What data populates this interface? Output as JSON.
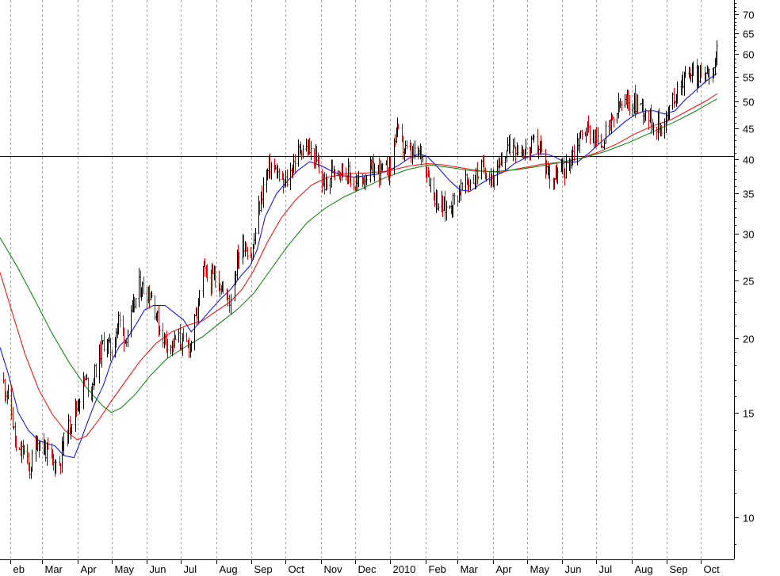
{
  "chart_data": {
    "type": "line",
    "title": "",
    "xlabel": "",
    "ylabel": "",
    "y_scale": "log",
    "ylim": [
      8.5,
      74
    ],
    "y_ticks": [
      10,
      15,
      20,
      25,
      30,
      35,
      40,
      45,
      50,
      55,
      60,
      65,
      70
    ],
    "x_tick_labels": [
      "eb",
      "Mar",
      "Apr",
      "May",
      "Jun",
      "Jul",
      "Aug",
      "Sep",
      "Oct",
      "Nov",
      "Dec",
      "2010",
      "Feb",
      "Mar",
      "Apr",
      "May",
      "Jun",
      "Jul",
      "Aug",
      "Sep",
      "Oct"
    ],
    "x_tick_dates": [
      "2009-02-01",
      "2009-03-01",
      "2009-04-01",
      "2009-05-01",
      "2009-06-01",
      "2009-07-01",
      "2009-08-01",
      "2009-09-01",
      "2009-10-01",
      "2009-11-01",
      "2009-12-01",
      "2010-01-01",
      "2010-02-01",
      "2010-03-01",
      "2010-04-01",
      "2010-05-01",
      "2010-06-01",
      "2010-07-01",
      "2010-08-01",
      "2010-09-01",
      "2010-10-01"
    ],
    "xlim": [
      "2009-01-23",
      "2010-10-30"
    ],
    "grid": "vertical dashed",
    "reference_line": {
      "y": 40.5,
      "color": "#0000a0"
    },
    "price_bars": {
      "up_color": "#000000",
      "down_color": "#e00000",
      "points": [
        [
          "2009-01-25",
          17
        ],
        [
          "2009-02-01",
          15.5
        ],
        [
          "2009-02-07",
          12.5
        ],
        [
          "2009-02-12",
          13
        ],
        [
          "2009-02-18",
          12
        ],
        [
          "2009-02-24",
          13.5
        ],
        [
          "2009-03-01",
          13.2
        ],
        [
          "2009-03-06",
          12.8
        ],
        [
          "2009-03-11",
          12.3
        ],
        [
          "2009-03-16",
          12.4
        ],
        [
          "2009-03-20",
          13.4
        ],
        [
          "2009-03-26",
          14.5
        ],
        [
          "2009-04-01",
          15.5
        ],
        [
          "2009-04-07",
          17
        ],
        [
          "2009-04-13",
          16.5
        ],
        [
          "2009-04-19",
          18.5
        ],
        [
          "2009-04-25",
          20
        ],
        [
          "2009-05-01",
          19
        ],
        [
          "2009-05-07",
          21.5
        ],
        [
          "2009-05-13",
          20
        ],
        [
          "2009-05-19",
          22
        ],
        [
          "2009-05-25",
          24.5
        ],
        [
          "2009-06-01",
          24
        ],
        [
          "2009-06-06",
          23.5
        ],
        [
          "2009-06-11",
          21
        ],
        [
          "2009-06-16",
          20
        ],
        [
          "2009-06-22",
          19.5
        ],
        [
          "2009-06-28",
          20
        ],
        [
          "2009-07-04",
          19.5
        ],
        [
          "2009-07-09",
          19.5
        ],
        [
          "2009-07-15",
          22
        ],
        [
          "2009-07-20",
          26
        ],
        [
          "2009-07-26",
          25
        ],
        [
          "2009-08-01",
          25.5
        ],
        [
          "2009-08-07",
          24
        ],
        [
          "2009-08-13",
          23
        ],
        [
          "2009-08-19",
          27
        ],
        [
          "2009-08-25",
          29
        ],
        [
          "2009-09-01",
          27.5
        ],
        [
          "2009-09-06",
          32
        ],
        [
          "2009-09-11",
          36
        ],
        [
          "2009-09-17",
          39
        ],
        [
          "2009-09-23",
          38
        ],
        [
          "2009-09-28",
          36
        ],
        [
          "2009-10-03",
          37
        ],
        [
          "2009-10-09",
          40
        ],
        [
          "2009-10-15",
          42
        ],
        [
          "2009-10-21",
          41.5
        ],
        [
          "2009-10-27",
          40
        ],
        [
          "2009-11-01",
          37
        ],
        [
          "2009-11-06",
          36
        ],
        [
          "2009-11-12",
          39
        ],
        [
          "2009-11-18",
          38.5
        ],
        [
          "2009-11-24",
          38
        ],
        [
          "2009-12-01",
          36
        ],
        [
          "2009-12-07",
          37
        ],
        [
          "2009-12-13",
          38
        ],
        [
          "2009-12-19",
          38.5
        ],
        [
          "2009-12-26",
          38
        ],
        [
          "2010-01-01",
          39
        ],
        [
          "2010-01-06",
          45
        ],
        [
          "2010-01-11",
          42
        ],
        [
          "2010-01-16",
          41
        ],
        [
          "2010-01-22",
          40.5
        ],
        [
          "2010-01-28",
          41
        ],
        [
          "2010-02-02",
          38.5
        ],
        [
          "2010-02-08",
          35
        ],
        [
          "2010-02-13",
          33.5
        ],
        [
          "2010-02-19",
          33
        ],
        [
          "2010-02-25",
          34
        ],
        [
          "2010-03-03",
          35.5
        ],
        [
          "2010-03-09",
          36.5
        ],
        [
          "2010-03-15",
          37
        ],
        [
          "2010-03-21",
          38.5
        ],
        [
          "2010-03-27",
          38.5
        ],
        [
          "2010-04-02",
          37
        ],
        [
          "2010-04-08",
          39
        ],
        [
          "2010-04-14",
          42
        ],
        [
          "2010-04-20",
          42.5
        ],
        [
          "2010-04-26",
          41.5
        ],
        [
          "2010-05-02",
          41
        ],
        [
          "2010-05-07",
          42.5
        ],
        [
          "2010-05-12",
          42
        ],
        [
          "2010-05-17",
          39
        ],
        [
          "2010-05-23",
          37
        ],
        [
          "2010-05-29",
          38
        ],
        [
          "2010-06-04",
          38.5
        ],
        [
          "2010-06-10",
          41
        ],
        [
          "2010-06-16",
          43.5
        ],
        [
          "2010-06-22",
          45
        ],
        [
          "2010-06-28",
          44
        ],
        [
          "2010-07-04",
          42
        ],
        [
          "2010-07-09",
          44
        ],
        [
          "2010-07-15",
          46
        ],
        [
          "2010-07-21",
          49
        ],
        [
          "2010-07-27",
          49.5
        ],
        [
          "2010-08-02",
          50
        ],
        [
          "2010-08-08",
          49.5
        ],
        [
          "2010-08-14",
          48
        ],
        [
          "2010-08-20",
          46
        ],
        [
          "2010-08-26",
          45.5
        ],
        [
          "2010-09-01",
          47
        ],
        [
          "2010-09-06",
          50
        ],
        [
          "2010-09-11",
          53
        ],
        [
          "2010-09-16",
          55
        ],
        [
          "2010-09-21",
          56
        ],
        [
          "2010-09-26",
          55
        ],
        [
          "2010-10-01",
          55.5
        ],
        [
          "2010-10-06",
          56.5
        ],
        [
          "2010-10-11",
          57
        ],
        [
          "2010-10-15",
          60
        ]
      ]
    },
    "series": [
      {
        "color": "#0000ff",
        "points": [
          [
            "2009-01-23",
            19.3
          ],
          [
            "2009-01-30",
            17.5
          ],
          [
            "2009-02-08",
            15
          ],
          [
            "2009-02-17",
            14
          ],
          [
            "2009-02-25",
            13.5
          ],
          [
            "2009-03-05",
            13.3
          ],
          [
            "2009-03-12",
            13.2
          ],
          [
            "2009-03-20",
            12.7
          ],
          [
            "2009-03-29",
            12.6
          ],
          [
            "2009-04-03",
            13.3
          ],
          [
            "2009-04-09",
            14.3
          ],
          [
            "2009-04-16",
            15.5
          ],
          [
            "2009-04-24",
            16.7
          ],
          [
            "2009-05-01",
            18.3
          ],
          [
            "2009-05-08",
            19.4
          ],
          [
            "2009-05-15",
            20
          ],
          [
            "2009-05-22",
            21
          ],
          [
            "2009-05-30",
            22.3
          ],
          [
            "2009-06-07",
            22.7
          ],
          [
            "2009-06-17",
            22.7
          ],
          [
            "2009-06-26",
            22
          ],
          [
            "2009-07-03",
            21.5
          ],
          [
            "2009-07-10",
            20.5
          ],
          [
            "2009-07-18",
            21.3
          ],
          [
            "2009-07-27",
            22.3
          ],
          [
            "2009-08-05",
            23.3
          ],
          [
            "2009-08-14",
            24.2
          ],
          [
            "2009-08-23",
            25.5
          ],
          [
            "2009-08-31",
            26.5
          ],
          [
            "2009-09-06",
            28.2
          ],
          [
            "2009-09-13",
            32
          ],
          [
            "2009-09-23",
            35
          ],
          [
            "2009-10-03",
            36.8
          ],
          [
            "2009-10-12",
            38.3
          ],
          [
            "2009-10-22",
            39.6
          ],
          [
            "2009-11-01",
            39
          ],
          [
            "2009-11-10",
            38.2
          ],
          [
            "2009-11-20",
            37.5
          ],
          [
            "2009-11-30",
            37.3
          ],
          [
            "2009-12-10",
            37.5
          ],
          [
            "2009-12-20",
            37.7
          ],
          [
            "2009-12-30",
            38.2
          ],
          [
            "2010-01-08",
            39
          ],
          [
            "2010-01-18",
            40.2
          ],
          [
            "2010-01-27",
            40.8
          ],
          [
            "2010-02-03",
            40.3
          ],
          [
            "2010-02-12",
            38.7
          ],
          [
            "2010-02-22",
            36.8
          ],
          [
            "2010-03-03",
            35.5
          ],
          [
            "2010-03-12",
            35.3
          ],
          [
            "2010-03-21",
            36.3
          ],
          [
            "2010-03-31",
            37.3
          ],
          [
            "2010-04-10",
            38
          ],
          [
            "2010-04-20",
            39.3
          ],
          [
            "2010-04-30",
            40.2
          ],
          [
            "2010-05-10",
            40.8
          ],
          [
            "2010-05-18",
            40.8
          ],
          [
            "2010-05-26",
            40.3
          ],
          [
            "2010-06-04",
            39.4
          ],
          [
            "2010-06-15",
            39.6
          ],
          [
            "2010-06-25",
            41
          ],
          [
            "2010-07-05",
            42.7
          ],
          [
            "2010-07-15",
            44.3
          ],
          [
            "2010-07-26",
            46.2
          ],
          [
            "2010-08-05",
            47.6
          ],
          [
            "2010-08-13",
            48.2
          ],
          [
            "2010-08-21",
            48.2
          ],
          [
            "2010-08-30",
            47.6
          ],
          [
            "2010-09-08",
            48.2
          ],
          [
            "2010-09-17",
            50.3
          ],
          [
            "2010-09-27",
            52.3
          ],
          [
            "2010-10-05",
            54
          ],
          [
            "2010-10-15",
            55.7
          ]
        ]
      },
      {
        "color": "#ff0000",
        "points": [
          [
            "2009-01-23",
            25.8
          ],
          [
            "2009-02-03",
            22
          ],
          [
            "2009-02-14",
            18.8
          ],
          [
            "2009-02-26",
            16.4
          ],
          [
            "2009-03-10",
            14.9
          ],
          [
            "2009-03-21",
            14
          ],
          [
            "2009-04-01",
            13.5
          ],
          [
            "2009-04-09",
            13.7
          ],
          [
            "2009-04-20",
            14.6
          ],
          [
            "2009-05-01",
            15.7
          ],
          [
            "2009-05-13",
            16.9
          ],
          [
            "2009-05-26",
            18.3
          ],
          [
            "2009-06-09",
            19.6
          ],
          [
            "2009-06-23",
            20.5
          ],
          [
            "2009-07-06",
            21
          ],
          [
            "2009-07-20",
            21.4
          ],
          [
            "2009-08-01",
            22.2
          ],
          [
            "2009-08-13",
            23
          ],
          [
            "2009-08-24",
            24.2
          ],
          [
            "2009-09-03",
            26
          ],
          [
            "2009-09-15",
            29
          ],
          [
            "2009-09-27",
            31.8
          ],
          [
            "2009-10-10",
            34.2
          ],
          [
            "2009-10-24",
            36.2
          ],
          [
            "2009-11-07",
            37.3
          ],
          [
            "2009-11-24",
            37.8
          ],
          [
            "2009-12-12",
            37.9
          ],
          [
            "2009-12-30",
            38.2
          ],
          [
            "2010-01-17",
            38.9
          ],
          [
            "2010-02-02",
            39.3
          ],
          [
            "2010-02-17",
            39.1
          ],
          [
            "2010-03-03",
            38.7
          ],
          [
            "2010-03-21",
            38.2
          ],
          [
            "2010-04-08",
            38
          ],
          [
            "2010-04-26",
            38.6
          ],
          [
            "2010-05-14",
            39.2
          ],
          [
            "2010-06-01",
            39.5
          ],
          [
            "2010-06-17",
            40.1
          ],
          [
            "2010-07-03",
            41.1
          ],
          [
            "2010-07-19",
            42.4
          ],
          [
            "2010-08-04",
            44.1
          ],
          [
            "2010-08-20",
            45.5
          ],
          [
            "2010-09-05",
            46.6
          ],
          [
            "2010-09-21",
            48.4
          ],
          [
            "2010-10-07",
            50.3
          ],
          [
            "2010-10-15",
            51.5
          ]
        ]
      },
      {
        "color": "#008000",
        "points": [
          [
            "2009-01-23",
            29.5
          ],
          [
            "2009-02-07",
            26.4
          ],
          [
            "2009-02-22",
            23.3
          ],
          [
            "2009-03-09",
            20.5
          ],
          [
            "2009-03-24",
            18.3
          ],
          [
            "2009-04-08",
            16.6
          ],
          [
            "2009-04-23",
            15.4
          ],
          [
            "2009-05-01",
            15
          ],
          [
            "2009-05-10",
            15.3
          ],
          [
            "2009-05-22",
            16.1
          ],
          [
            "2009-06-04",
            17.3
          ],
          [
            "2009-06-19",
            18.5
          ],
          [
            "2009-07-04",
            19.3
          ],
          [
            "2009-07-20",
            20.1
          ],
          [
            "2009-08-04",
            21.2
          ],
          [
            "2009-08-19",
            22.3
          ],
          [
            "2009-09-03",
            23.8
          ],
          [
            "2009-09-18",
            26.1
          ],
          [
            "2009-10-03",
            28.6
          ],
          [
            "2009-10-20",
            31.3
          ],
          [
            "2009-11-05",
            33.1
          ],
          [
            "2009-11-22",
            34.6
          ],
          [
            "2009-12-09",
            35.8
          ],
          [
            "2009-12-27",
            37.2
          ],
          [
            "2010-01-16",
            38.4
          ],
          [
            "2010-02-04",
            39.1
          ],
          [
            "2010-02-23",
            38.7
          ],
          [
            "2010-03-14",
            38.2
          ],
          [
            "2010-04-03",
            38.1
          ],
          [
            "2010-04-23",
            38.4
          ],
          [
            "2010-05-12",
            38.9
          ],
          [
            "2010-05-31",
            39.5
          ],
          [
            "2010-06-20",
            40.2
          ],
          [
            "2010-07-09",
            41.2
          ],
          [
            "2010-07-29",
            42.6
          ],
          [
            "2010-08-18",
            44.3
          ],
          [
            "2010-09-07",
            46.1
          ],
          [
            "2010-09-26",
            48.1
          ],
          [
            "2010-10-15",
            50.5
          ]
        ]
      }
    ]
  }
}
